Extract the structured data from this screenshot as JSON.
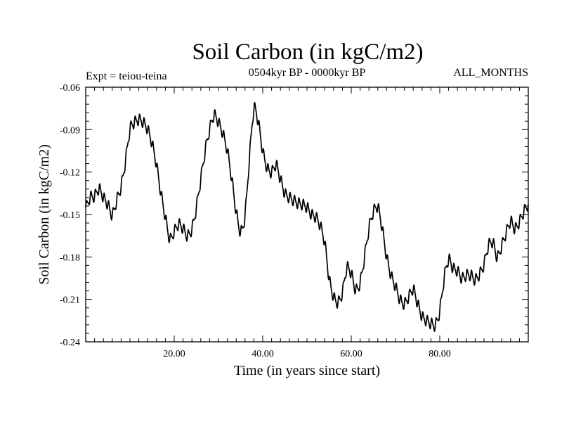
{
  "chart_data": {
    "type": "line",
    "title": "Soil Carbon (in kgC/m2)",
    "subtitle": "0504kyr BP - 0000kyr BP",
    "left_label": "Expt = teiou-teina",
    "right_label": "ALL_MONTHS",
    "xlabel": "Time (in years since start)",
    "ylabel": "Soil Carbon (in kgC/m2)",
    "xlim": [
      0,
      100
    ],
    "ylim": [
      -0.24,
      -0.06
    ],
    "xticks": [
      20,
      40,
      60,
      80
    ],
    "xtick_labels": [
      "20.00",
      "40.00",
      "60.00",
      "80.00"
    ],
    "yticks": [
      -0.06,
      -0.09,
      -0.12,
      -0.15,
      -0.18,
      -0.21,
      -0.24
    ],
    "ytick_labels": [
      "-0.06",
      "-0.09",
      "-0.12",
      "-0.15",
      "-0.18",
      "-0.21",
      "-0.24"
    ],
    "grid": false,
    "legend": "none",
    "series": [
      {
        "name": "Soil Carbon",
        "color": "#000000",
        "x": [
          0,
          1,
          2,
          3,
          4,
          5,
          6,
          7,
          8,
          9,
          10,
          11,
          12,
          13,
          14,
          15,
          16,
          17,
          18,
          19,
          20,
          21,
          22,
          23,
          24,
          25,
          26,
          27,
          28,
          29,
          30,
          31,
          32,
          33,
          34,
          35,
          36,
          37,
          38,
          39,
          40,
          41,
          42,
          43,
          44,
          45,
          46,
          47,
          48,
          49,
          50,
          51,
          52,
          53,
          54,
          55,
          56,
          57,
          58,
          59,
          60,
          61,
          62,
          63,
          64,
          65,
          66,
          67,
          68,
          69,
          70,
          71,
          72,
          73,
          74,
          75,
          76,
          77,
          78,
          79,
          80,
          81,
          82,
          83,
          84,
          85,
          86,
          87,
          88,
          89,
          90,
          91,
          92,
          93,
          94,
          95,
          96,
          97,
          98,
          99,
          100
        ],
        "values": [
          -0.145,
          -0.138,
          -0.137,
          -0.132,
          -0.138,
          -0.143,
          -0.15,
          -0.14,
          -0.13,
          -0.112,
          -0.09,
          -0.085,
          -0.083,
          -0.085,
          -0.09,
          -0.1,
          -0.115,
          -0.135,
          -0.152,
          -0.167,
          -0.162,
          -0.157,
          -0.16,
          -0.165,
          -0.16,
          -0.145,
          -0.125,
          -0.105,
          -0.09,
          -0.08,
          -0.085,
          -0.093,
          -0.105,
          -0.125,
          -0.148,
          -0.162,
          -0.15,
          -0.11,
          -0.076,
          -0.085,
          -0.105,
          -0.117,
          -0.12,
          -0.115,
          -0.125,
          -0.135,
          -0.138,
          -0.14,
          -0.142,
          -0.143,
          -0.145,
          -0.15,
          -0.152,
          -0.158,
          -0.17,
          -0.195,
          -0.208,
          -0.212,
          -0.205,
          -0.188,
          -0.192,
          -0.203,
          -0.198,
          -0.18,
          -0.16,
          -0.148,
          -0.145,
          -0.16,
          -0.18,
          -0.193,
          -0.201,
          -0.21,
          -0.213,
          -0.208,
          -0.203,
          -0.213,
          -0.222,
          -0.225,
          -0.227,
          -0.228,
          -0.218,
          -0.195,
          -0.182,
          -0.188,
          -0.19,
          -0.195,
          -0.193,
          -0.193,
          -0.196,
          -0.192,
          -0.185,
          -0.172,
          -0.17,
          -0.18,
          -0.172,
          -0.163,
          -0.155,
          -0.16,
          -0.155,
          -0.148,
          -0.143
        ]
      }
    ]
  }
}
